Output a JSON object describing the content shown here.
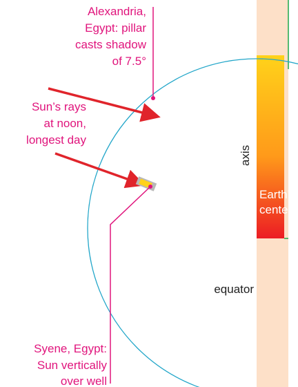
{
  "labels": {
    "alexandria": [
      "Alexandria,",
      "Egypt: pillar",
      "casts shadow",
      "of 7.5°"
    ],
    "rays": [
      "Sun’s rays",
      "at noon,",
      "longest day"
    ],
    "syene": [
      "Syene, Egypt:",
      "Sun vertically",
      "over well"
    ],
    "axis": "axis",
    "center": [
      "Earth’s",
      "center"
    ],
    "equator": "equator"
  }
}
